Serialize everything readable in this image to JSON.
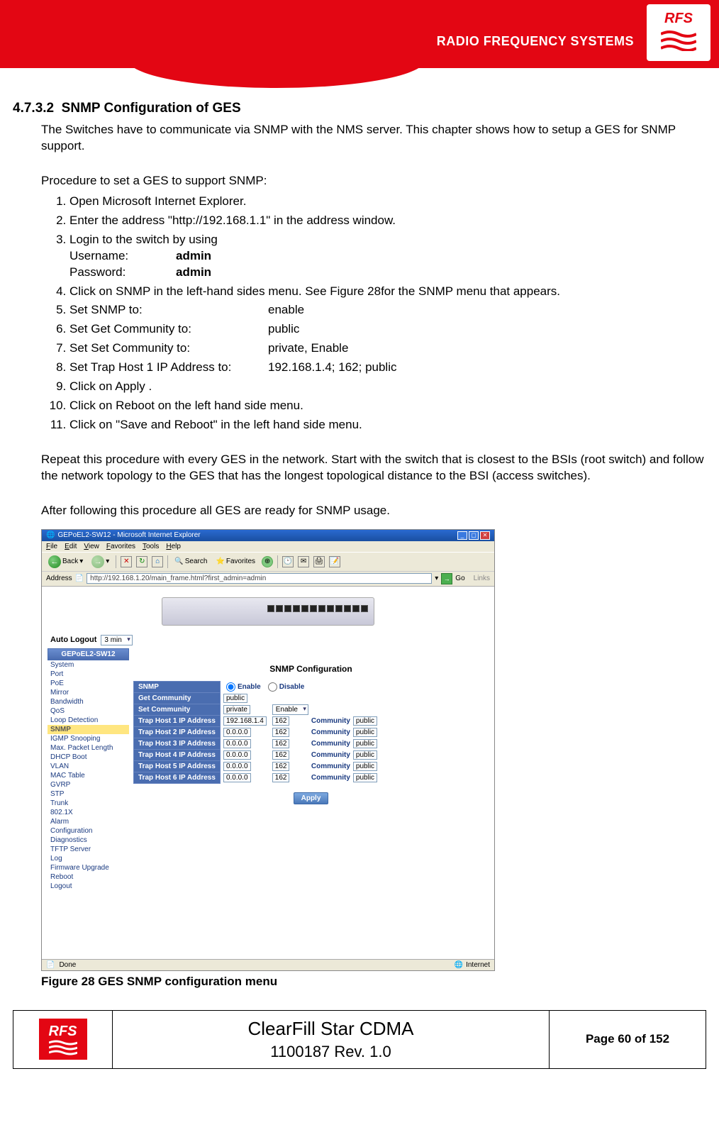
{
  "brand": {
    "header_text": "RADIO FREQUENCY SYSTEMS",
    "logo_text": "RFS",
    "logo_wave_color": "#e30613",
    "header_bg": "#e30613"
  },
  "section": {
    "number": "4.7.3.2",
    "title": "SNMP Configuration of GES"
  },
  "intro": "The Switches have to communicate via SNMP with the NMS server. This chapter shows how to setup a GES for SNMP support.",
  "procedure_heading": "Procedure to set a GES to support SNMP:",
  "steps": {
    "s1": "Open Microsoft Internet Explorer.",
    "s2": "Enter the address \"http://192.168.1.1\" in the address window.",
    "s3": "Login to the switch by using",
    "s3_user_label": "Username:",
    "s3_user_value": "admin",
    "s3_pass_label": "Password:",
    "s3_pass_value": "admin",
    "s4": "Click on SNMP in the left-hand sides menu. See Figure 28for the SNMP menu that appears.",
    "s5_label": "Set SNMP to:",
    "s5_value": "enable",
    "s6_label": "Set Get Community to:",
    "s6_value": "public",
    "s7_label": "Set Set Community to:",
    "s7_value": "private, Enable",
    "s8_label": "Set Trap Host 1 IP Address to:",
    "s8_value": "192.168.1.4; 162; public",
    "s9": "Click on Apply .",
    "s10": "Click on Reboot on the left hand side menu.",
    "s11": "Click on \"Save and Reboot\" in the left hand side menu."
  },
  "repeat_para": "Repeat this procedure with every GES in the network. Start with the switch that is closest to the BSIs (root switch) and follow the network topology to the GES that has the longest topological distance to the BSI (access switches).",
  "after_para": "After following this procedure all GES are ready for SNMP usage.",
  "ie": {
    "title": "GEPoEL2-SW12 - Microsoft Internet Explorer",
    "menus": [
      "File",
      "Edit",
      "View",
      "Favorites",
      "Tools",
      "Help"
    ],
    "toolbar_back": "Back",
    "toolbar_search": "Search",
    "toolbar_favorites": "Favorites",
    "address_label": "Address",
    "address_value": "http://192.168.1.20/main_frame.html?first_admin=admin",
    "go_label": "Go",
    "links_label": "Links",
    "status_done": "Done",
    "status_zone": "Internet"
  },
  "ui": {
    "auto_logout_label": "Auto Logout",
    "auto_logout_value": "3 min",
    "sidebar_title": "GEPoEL2-SW12",
    "sidebar_items": [
      "System",
      "Port",
      "PoE",
      "Mirror",
      "Bandwidth",
      "QoS",
      "Loop Detection",
      "SNMP",
      "IGMP Snooping",
      "Max. Packet Length",
      "DHCP Boot",
      "VLAN",
      "MAC Table",
      "GVRP",
      "STP",
      "Trunk",
      "802.1X",
      "Alarm",
      "Configuration",
      "Diagnostics",
      "TFTP Server",
      "Log",
      "Firmware Upgrade",
      "Reboot",
      "Logout"
    ],
    "sidebar_selected": "SNMP",
    "panel_title": "SNMP Configuration",
    "rows": {
      "snmp_label": "SNMP",
      "snmp_enable": "Enable",
      "snmp_disable": "Disable",
      "get_label": "Get Community",
      "get_value": "public",
      "set_label": "Set Community",
      "set_value": "private",
      "set_select": "Enable",
      "community_label": "Community"
    },
    "trap_hosts": [
      {
        "label": "Trap Host 1 IP Address",
        "ip": "192.168.1.4",
        "port": "162",
        "community": "public"
      },
      {
        "label": "Trap Host 2 IP Address",
        "ip": "0.0.0.0",
        "port": "162",
        "community": "public"
      },
      {
        "label": "Trap Host 3 IP Address",
        "ip": "0.0.0.0",
        "port": "162",
        "community": "public"
      },
      {
        "label": "Trap Host 4 IP Address",
        "ip": "0.0.0.0",
        "port": "162",
        "community": "public"
      },
      {
        "label": "Trap Host 5 IP Address",
        "ip": "0.0.0.0",
        "port": "162",
        "community": "public"
      },
      {
        "label": "Trap Host 6 IP Address",
        "ip": "0.0.0.0",
        "port": "162",
        "community": "public"
      }
    ],
    "apply_label": "Apply"
  },
  "figure_caption": "Figure 28 GES SNMP configuration menu",
  "footer": {
    "title": "ClearFill Star CDMA",
    "subtitle": "1100187 Rev. 1.0",
    "page": "Page 60 of 152",
    "logo_text": "RFS"
  },
  "colors": {
    "brand_red": "#e30613",
    "xp_blue_top": "#2a6ad0",
    "xp_blue_bottom": "#1a4fa0",
    "row_header_bg": "#4a6db0",
    "link_color": "#1a3a80",
    "selected_bg": "#ffe680"
  }
}
